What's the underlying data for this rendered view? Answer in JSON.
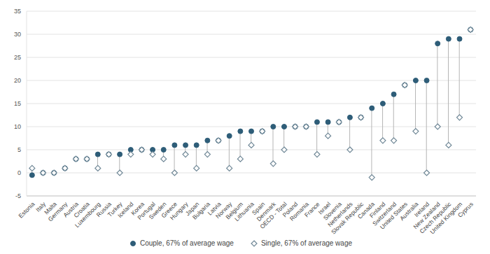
{
  "chart_data": {
    "type": "dot",
    "categories": [
      "Estonia",
      "Italy",
      "Malta",
      "Germany",
      "Austria",
      "Croatia",
      "Luxembourg",
      "Russia",
      "Turkey",
      "Iceland",
      "Korea",
      "Portugal",
      "Sweden",
      "Greece",
      "Hungary",
      "Japan",
      "Bulgaria",
      "Latvia",
      "Norway",
      "Belgium",
      "Lithuania",
      "Spain",
      "Denmark",
      "OECD - Total",
      "Poland",
      "Romania",
      "France",
      "Israel",
      "Slovenia",
      "Netherlands",
      "Slovak Republic",
      "Canada",
      "Finland",
      "Switzerland",
      "United States",
      "Australia",
      "Ireland",
      "New Zealand",
      "Czech Republic",
      "United Kingdom",
      "Cyprus"
    ],
    "series": [
      {
        "name": "Couple, 67% of average wage",
        "color": "#2e5d78",
        "marker": "circle",
        "values": [
          -0.5,
          0,
          0,
          1,
          3,
          3,
          4,
          4,
          4,
          5,
          5,
          5,
          5,
          6,
          6,
          6,
          7,
          7,
          8,
          9,
          9,
          9,
          10,
          10,
          10,
          10,
          11,
          11,
          11,
          12,
          12,
          14,
          15,
          17,
          19,
          20,
          20,
          28,
          29,
          29,
          31
        ]
      },
      {
        "name": "Single, 67% of average wage",
        "color": "#6f8796",
        "marker": "diamond",
        "values": [
          1,
          0,
          0,
          1,
          3,
          3,
          1,
          4,
          0,
          4,
          5,
          4,
          3,
          0,
          4,
          1,
          4,
          7,
          1,
          3,
          6,
          9,
          2,
          5,
          10,
          10,
          4,
          8,
          11,
          5,
          12,
          -1,
          7,
          7,
          19,
          9,
          0,
          10,
          6,
          12,
          31
        ]
      }
    ],
    "ylim": [
      -5,
      35
    ],
    "yticks": [
      -5,
      0,
      5,
      10,
      15,
      20,
      25,
      30,
      35
    ],
    "grid": true,
    "legend": "bottom"
  }
}
